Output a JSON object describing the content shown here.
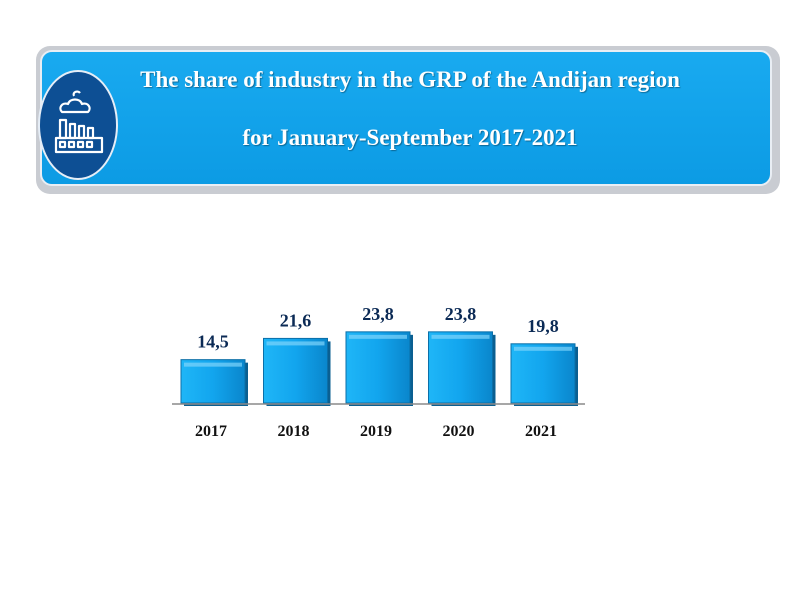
{
  "header": {
    "title_line1": "The share of industry in the GRP of the Andijan region",
    "title_line2": "for January-September 2017-2021",
    "icon": "factory-icon"
  },
  "colors": {
    "banner": "#129fe8",
    "icon_circle": "#0d4f94",
    "bar": "#19a9ef",
    "label": "#0b2a55"
  },
  "chart_data": {
    "type": "bar",
    "categories": [
      "2017",
      "2018",
      "2019",
      "2020",
      "2021"
    ],
    "values": [
      14.5,
      21.6,
      23.8,
      23.8,
      19.8
    ],
    "value_labels": [
      "14,5",
      "21,6",
      "23,8",
      "23,8",
      "19,8"
    ],
    "title": "",
    "xlabel": "",
    "ylabel": "",
    "ylim": [
      0,
      25
    ],
    "grid": false,
    "legend": "none"
  }
}
